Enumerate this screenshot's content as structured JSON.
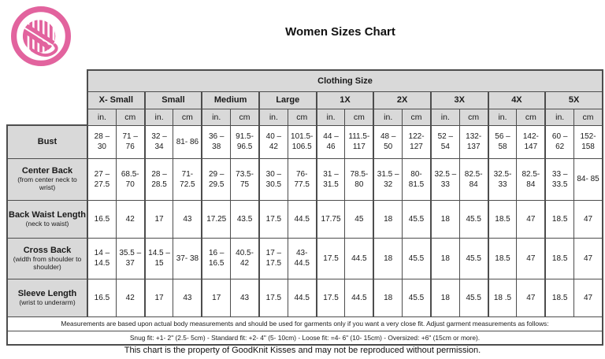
{
  "title": "Women Sizes Chart",
  "logo": {
    "icon": "yarn-ball-icon",
    "color": "#e2639e"
  },
  "table": {
    "clothing_size_header": "Clothing Size",
    "sizes": [
      "X- Small",
      "Small",
      "Medium",
      "Large",
      "1X",
      "2X",
      "3X",
      "4X",
      "5X"
    ],
    "units": [
      "in.",
      "cm"
    ],
    "rows": [
      {
        "label": "Bust",
        "sublabel": "",
        "cells": [
          "28 – 30",
          "71 – 76",
          "32 – 34",
          "81- 86",
          "36 – 38",
          "91.5-96.5",
          "40 – 42",
          "101.5-106.5",
          "44 – 46",
          "111.5-117",
          "48 – 50",
          "122-127",
          "52 – 54",
          "132-137",
          "56 – 58",
          "142-147",
          "60 – 62",
          "152-158"
        ]
      },
      {
        "label": "Center Back",
        "sublabel": "(from center neck to wrist)",
        "cells": [
          "27 – 27.5",
          "68.5-70",
          "28 – 28.5",
          "71-72.5",
          "29 – 29.5",
          "73.5-75",
          "30 – 30.5",
          "76-77.5",
          "31 – 31.5",
          "78.5-80",
          "31.5 – 32",
          "80-81.5",
          "32.5 – 33",
          "82.5-84",
          "32.5-33",
          "82.5-84",
          "33 – 33.5",
          "84- 85"
        ]
      },
      {
        "label": "Back Waist Length",
        "sublabel": "(neck to waist)",
        "cells": [
          "16.5",
          "42",
          "17",
          "43",
          "17.25",
          "43.5",
          "17.5",
          "44.5",
          "17.75",
          "45",
          "18",
          "45.5",
          "18",
          "45.5",
          "18.5",
          "47",
          "18.5",
          "47"
        ]
      },
      {
        "label": "Cross Back",
        "sublabel": "(width from shoulder to shoulder)",
        "cells": [
          "14 – 14.5",
          "35.5 – 37",
          "14.5 – 15",
          "37- 38",
          "16 – 16.5",
          "40.5-42",
          "17 – 17.5",
          "43-44.5",
          "17.5",
          "44.5",
          "18",
          "45.5",
          "18",
          "45.5",
          "18.5",
          "47",
          "18.5",
          "47"
        ]
      },
      {
        "label": "Sleeve Length",
        "sublabel": "(wrist to underarm)",
        "cells": [
          "16.5",
          "42",
          "17",
          "43",
          "17",
          "43",
          "17.5",
          "44.5",
          "17.5",
          "44.5",
          "18",
          "45.5",
          "18",
          "45.5",
          "18 .5",
          "47",
          "18.5",
          "47"
        ]
      }
    ],
    "footnote1": "Measurements are based upon actual body measurements and should be used for garments only if you want a very close fit.  Adjust garment measurements as follows:",
    "footnote2": "Snug fit: +1- 2\" (2.5- 5cm) -  Standard fit: +2- 4\" (5- 10cm) -   Loose fit: =4- 6\" (10- 15cm) -   Oversized: +6\" (15cm or more)."
  },
  "copyright": "This chart is the property of GoodKnit Kisses and may not be reproduced without permission.",
  "colors": {
    "brand_pink": "#e2639e",
    "header_gray": "#d9d9d9",
    "border_gray": "#4d4d4d"
  }
}
